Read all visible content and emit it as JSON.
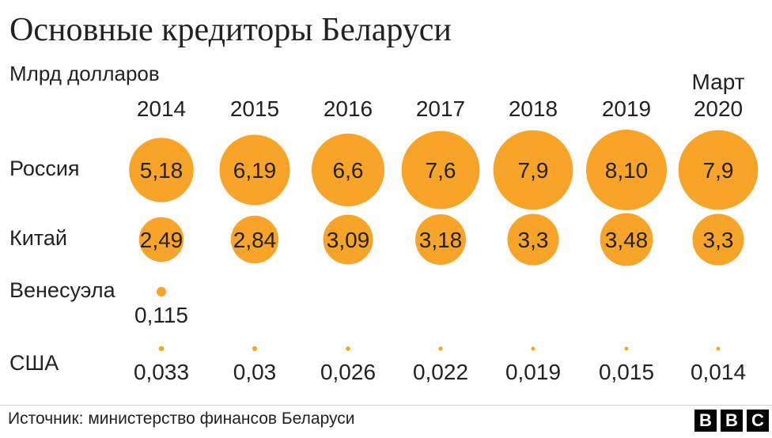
{
  "title": "Основные кредиторы Беларуси",
  "subtitle": "Млрд долларов",
  "source": "Источник: министерство финансов Беларуси",
  "logo": [
    "B",
    "B",
    "C"
  ],
  "colors": {
    "bubble": "#f8a428",
    "text": "#222222"
  },
  "chart_data": {
    "type": "bubble",
    "title": "Основные кредиторы Беларуси",
    "unit": "Млрд долларов",
    "columns": [
      [
        "2014"
      ],
      [
        "2015"
      ],
      [
        "2016"
      ],
      [
        "2017"
      ],
      [
        "2018"
      ],
      [
        "2019"
      ],
      [
        "Март",
        "2020"
      ]
    ],
    "series": [
      {
        "name": "Россия",
        "values": [
          5.18,
          6.19,
          6.6,
          7.6,
          7.9,
          8.1,
          7.9
        ],
        "labels": [
          "5,18",
          "6,19",
          "6,6",
          "7,6",
          "7,9",
          "8,10",
          "7,9"
        ]
      },
      {
        "name": "Китай",
        "values": [
          2.49,
          2.84,
          3.09,
          3.18,
          3.3,
          3.48,
          3.3
        ],
        "labels": [
          "2,49",
          "2,84",
          "3,09",
          "3,18",
          "3,3",
          "3,48",
          "3,3"
        ]
      },
      {
        "name": "Венесуэла",
        "values": [
          0.115,
          null,
          null,
          null,
          null,
          null,
          null
        ],
        "labels": [
          "0,115",
          null,
          null,
          null,
          null,
          null,
          null
        ]
      },
      {
        "name": "США",
        "values": [
          0.033,
          0.03,
          0.026,
          0.022,
          0.019,
          0.015,
          0.014
        ],
        "labels": [
          "0,033",
          "0,03",
          "0,026",
          "0,022",
          "0,019",
          "0,015",
          "0,014"
        ]
      }
    ]
  }
}
